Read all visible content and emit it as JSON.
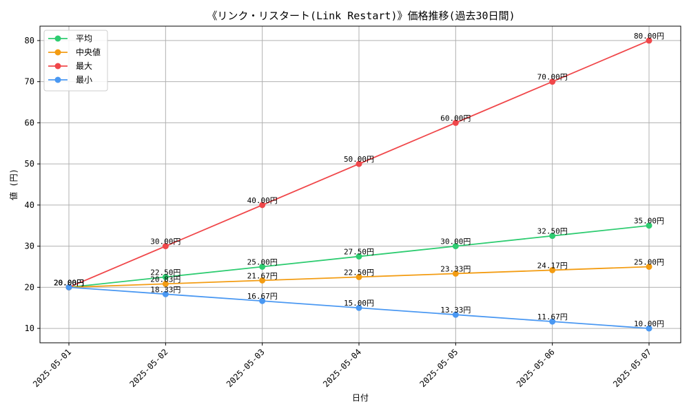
{
  "chart_data": {
    "type": "line",
    "title": "《リンク・リスタート(Link Restart)》価格推移(過去30日間)",
    "xlabel": "日付",
    "ylabel": "値 (円)",
    "categories": [
      "2025-05-01",
      "2025-05-02",
      "2025-05-03",
      "2025-05-04",
      "2025-05-05",
      "2025-05-06",
      "2025-05-07"
    ],
    "ylim": [
      6.5,
      83.5
    ],
    "yticks": [
      10,
      20,
      30,
      40,
      50,
      60,
      70,
      80
    ],
    "grid": true,
    "legend_position": "top-left",
    "value_suffix": "円",
    "series": [
      {
        "name": "平均",
        "color": "#2ecc71",
        "values": [
          20.0,
          22.5,
          25.0,
          27.5,
          30.0,
          32.5,
          35.0
        ]
      },
      {
        "name": "中央値",
        "color": "#f39c12",
        "values": [
          20.0,
          20.83,
          21.67,
          22.5,
          23.33,
          24.17,
          25.0
        ]
      },
      {
        "name": "最大",
        "color": "#f0474a",
        "values": [
          20.0,
          30.0,
          40.0,
          50.0,
          60.0,
          70.0,
          80.0
        ]
      },
      {
        "name": "最小",
        "color": "#4a98f2",
        "values": [
          20.0,
          18.33,
          16.67,
          15.0,
          13.33,
          11.67,
          10.0
        ]
      }
    ]
  }
}
